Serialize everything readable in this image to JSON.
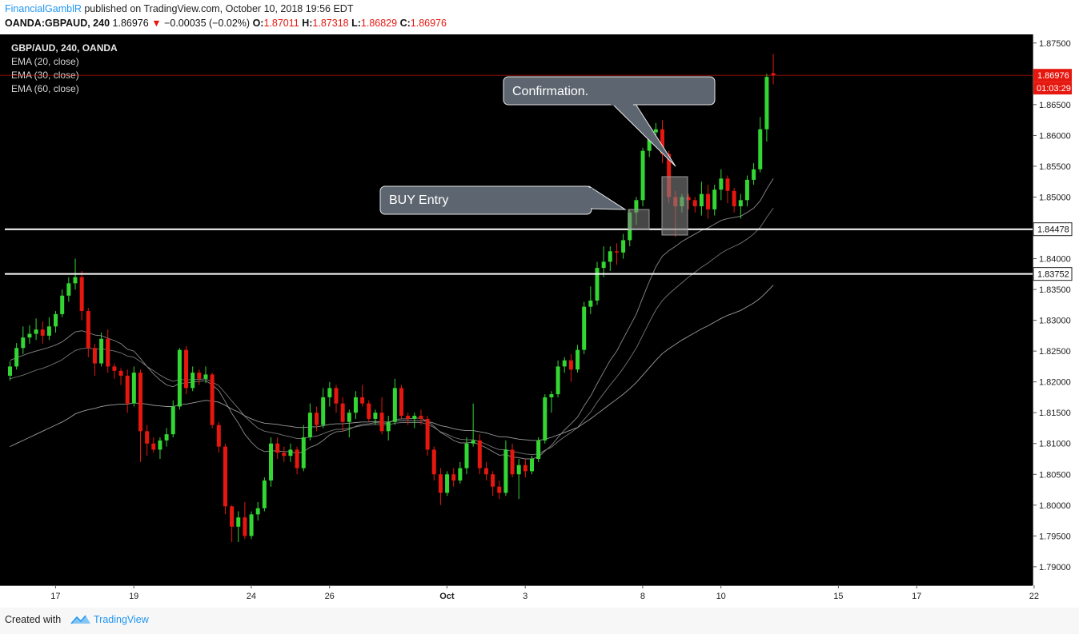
{
  "header": {
    "author": "FinancialGamblR",
    "published": "published on TradingView.com, October 10, 2018 19:56 EDT",
    "symbol_line": "OANDA:GBPAUD, 240",
    "last": "1.86976",
    "change": "−0.00035 (−0.02%)",
    "ohlc": {
      "o": "1.87011",
      "h": "1.87318",
      "l": "1.86829",
      "c": "1.86976"
    }
  },
  "legend": {
    "title": "GBP/AUD, 240, OANDA",
    "ema20": "EMA (20, close)",
    "ema30": "EMA (30, close)",
    "ema60": "EMA (60, close)"
  },
  "annotations": {
    "confirmation": "Confirmation.",
    "buy_entry": "BUY Entry"
  },
  "footer": {
    "created_with": "Created with",
    "brand": "TradingView"
  },
  "colors": {
    "up": "#33d633",
    "down": "#e5170f",
    "background": "#000000",
    "axis_text": "#222222",
    "price_badge": "#e5170f"
  },
  "chart_data": {
    "type": "candlestick",
    "title": "GBP/AUD, 240, OANDA",
    "ylim": [
      1.787,
      1.8764
    ],
    "y_ticks": [
      "1.87500",
      "1.86500",
      "1.86000",
      "1.85500",
      "1.85000",
      "1.84000",
      "1.83500",
      "1.83000",
      "1.82500",
      "1.82000",
      "1.81500",
      "1.81000",
      "1.80500",
      "1.80000",
      "1.79500",
      "1.79000"
    ],
    "x_ticks": [
      {
        "label": "17",
        "bar": 6
      },
      {
        "label": "19",
        "bar": 18
      },
      {
        "label": "24",
        "bar": 36
      },
      {
        "label": "26",
        "bar": 48
      },
      {
        "label": "Oct",
        "bar": 66
      },
      {
        "label": "3",
        "bar": 78
      },
      {
        "label": "8",
        "bar": 96
      },
      {
        "label": "10",
        "bar": 108
      },
      {
        "label": "15",
        "bar": 126
      },
      {
        "label": "17",
        "bar": 138
      },
      {
        "label": "22",
        "bar": 156
      }
    ],
    "horizontal_levels": [
      {
        "price": 1.84478,
        "label": "1.84478"
      },
      {
        "price": 1.83752,
        "label": "1.83752"
      }
    ],
    "last_price": {
      "price": 1.86976,
      "label": "1.86976",
      "timer": "01:03:29"
    },
    "ohlc": [
      [
        1.821,
        1.8233,
        1.8202,
        1.8225
      ],
      [
        1.8225,
        1.8263,
        1.822,
        1.8255
      ],
      [
        1.8255,
        1.829,
        1.8245,
        1.8272
      ],
      [
        1.8272,
        1.8292,
        1.8262,
        1.8278
      ],
      [
        1.8278,
        1.8303,
        1.8268,
        1.8285
      ],
      [
        1.8285,
        1.8298,
        1.8262,
        1.8275
      ],
      [
        1.8275,
        1.8305,
        1.8268,
        1.829
      ],
      [
        1.829,
        1.8315,
        1.828,
        1.831
      ],
      [
        1.831,
        1.835,
        1.8305,
        1.834
      ],
      [
        1.834,
        1.837,
        1.833,
        1.836
      ],
      [
        1.836,
        1.84,
        1.835,
        1.837
      ],
      [
        1.837,
        1.838,
        1.83,
        1.8315
      ],
      [
        1.8315,
        1.832,
        1.824,
        1.8255
      ],
      [
        1.8255,
        1.8262,
        1.821,
        1.823
      ],
      [
        1.823,
        1.828,
        1.8225,
        1.827
      ],
      [
        1.827,
        1.8285,
        1.8215,
        1.8225
      ],
      [
        1.8225,
        1.823,
        1.8205,
        1.8218
      ],
      [
        1.8218,
        1.8222,
        1.8195,
        1.821
      ],
      [
        1.821,
        1.822,
        1.815,
        1.8165
      ],
      [
        1.8165,
        1.8225,
        1.816,
        1.8215
      ],
      [
        1.8215,
        1.822,
        1.807,
        1.812
      ],
      [
        1.812,
        1.813,
        1.808,
        1.81
      ],
      [
        1.81,
        1.811,
        1.8085,
        1.809
      ],
      [
        1.809,
        1.811,
        1.8075,
        1.8105
      ],
      [
        1.8105,
        1.8125,
        1.8095,
        1.8115
      ],
      [
        1.8115,
        1.817,
        1.811,
        1.816
      ],
      [
        1.816,
        1.8255,
        1.8155,
        1.8252
      ],
      [
        1.8252,
        1.8258,
        1.818,
        1.819
      ],
      [
        1.819,
        1.8225,
        1.8185,
        1.8215
      ],
      [
        1.8215,
        1.822,
        1.8195,
        1.8205
      ],
      [
        1.8205,
        1.8225,
        1.8198,
        1.8212
      ],
      [
        1.8212,
        1.8215,
        1.8125,
        1.813
      ],
      [
        1.813,
        1.8135,
        1.8085,
        1.8095
      ],
      [
        1.8095,
        1.81,
        1.7985,
        1.7998
      ],
      [
        1.7998,
        1.8,
        1.794,
        1.7965
      ],
      [
        1.7965,
        1.799,
        1.794,
        1.798
      ],
      [
        1.798,
        1.8005,
        1.7945,
        1.795
      ],
      [
        1.795,
        1.799,
        1.7945,
        1.7985
      ],
      [
        1.7985,
        1.8005,
        1.7975,
        1.7995
      ],
      [
        1.7995,
        1.8045,
        1.799,
        1.804
      ],
      [
        1.804,
        1.811,
        1.803,
        1.81
      ],
      [
        1.81,
        1.811,
        1.8075,
        1.8085
      ],
      [
        1.8085,
        1.8095,
        1.807,
        1.808
      ],
      [
        1.808,
        1.81,
        1.807,
        1.809
      ],
      [
        1.809,
        1.8095,
        1.805,
        1.806
      ],
      [
        1.806,
        1.813,
        1.8055,
        1.811
      ],
      [
        1.811,
        1.8165,
        1.8105,
        1.815
      ],
      [
        1.815,
        1.816,
        1.812,
        1.813
      ],
      [
        1.813,
        1.819,
        1.8125,
        1.8175
      ],
      [
        1.8175,
        1.82,
        1.816,
        1.819
      ],
      [
        1.819,
        1.8195,
        1.815,
        1.8165
      ],
      [
        1.8165,
        1.8175,
        1.812,
        1.8135
      ],
      [
        1.8135,
        1.8155,
        1.811,
        1.815
      ],
      [
        1.815,
        1.8185,
        1.814,
        1.8175
      ],
      [
        1.8175,
        1.8195,
        1.816,
        1.8165
      ],
      [
        1.8165,
        1.817,
        1.8135,
        1.814
      ],
      [
        1.814,
        1.8155,
        1.813,
        1.815
      ],
      [
        1.815,
        1.8175,
        1.8115,
        1.812
      ],
      [
        1.812,
        1.8145,
        1.8105,
        1.8135
      ],
      [
        1.8135,
        1.8205,
        1.813,
        1.819
      ],
      [
        1.819,
        1.8195,
        1.814,
        1.8145
      ],
      [
        1.8145,
        1.815,
        1.813,
        1.814
      ],
      [
        1.814,
        1.815,
        1.8125,
        1.8145
      ],
      [
        1.8145,
        1.8155,
        1.813,
        1.814
      ],
      [
        1.814,
        1.8145,
        1.808,
        1.809
      ],
      [
        1.809,
        1.8095,
        1.804,
        1.805
      ],
      [
        1.805,
        1.806,
        1.8,
        1.802
      ],
      [
        1.802,
        1.8055,
        1.8015,
        1.805
      ],
      [
        1.805,
        1.806,
        1.803,
        1.804
      ],
      [
        1.804,
        1.807,
        1.8035,
        1.806
      ],
      [
        1.806,
        1.811,
        1.805,
        1.81
      ],
      [
        1.81,
        1.8165,
        1.8095,
        1.8105
      ],
      [
        1.8105,
        1.8115,
        1.805,
        1.806
      ],
      [
        1.806,
        1.807,
        1.804,
        1.805
      ],
      [
        1.805,
        1.8055,
        1.8015,
        1.803
      ],
      [
        1.803,
        1.804,
        1.801,
        1.802
      ],
      [
        1.802,
        1.8105,
        1.8015,
        1.809
      ],
      [
        1.809,
        1.81,
        1.8045,
        1.805
      ],
      [
        1.805,
        1.8075,
        1.801,
        1.8065
      ],
      [
        1.8065,
        1.8075,
        1.8045,
        1.8055
      ],
      [
        1.8055,
        1.808,
        1.805,
        1.8075
      ],
      [
        1.8075,
        1.811,
        1.807,
        1.8105
      ],
      [
        1.8105,
        1.818,
        1.81,
        1.8175
      ],
      [
        1.8175,
        1.8185,
        1.815,
        1.818
      ],
      [
        1.818,
        1.8235,
        1.8175,
        1.8225
      ],
      [
        1.8225,
        1.824,
        1.8215,
        1.8235
      ],
      [
        1.8235,
        1.8245,
        1.82,
        1.822
      ],
      [
        1.822,
        1.826,
        1.8215,
        1.8252
      ],
      [
        1.8252,
        1.833,
        1.8245,
        1.8322
      ],
      [
        1.8322,
        1.8355,
        1.831,
        1.8332
      ],
      [
        1.8332,
        1.8395,
        1.8325,
        1.8385
      ],
      [
        1.8385,
        1.842,
        1.837,
        1.8395
      ],
      [
        1.8395,
        1.842,
        1.838,
        1.8412
      ],
      [
        1.8412,
        1.8425,
        1.839,
        1.841
      ],
      [
        1.841,
        1.844,
        1.84,
        1.843
      ],
      [
        1.843,
        1.848,
        1.842,
        1.8475
      ],
      [
        1.8475,
        1.85,
        1.8455,
        1.8495
      ],
      [
        1.8495,
        1.858,
        1.8485,
        1.8575
      ],
      [
        1.8575,
        1.861,
        1.8565,
        1.8605
      ],
      [
        1.8605,
        1.862,
        1.859,
        1.861
      ],
      [
        1.861,
        1.8625,
        1.8555,
        1.857
      ],
      [
        1.857,
        1.8575,
        1.849,
        1.85
      ],
      [
        1.85,
        1.851,
        1.8435,
        1.8485
      ],
      [
        1.8485,
        1.8505,
        1.8475,
        1.85
      ],
      [
        1.85,
        1.8505,
        1.848,
        1.8495
      ],
      [
        1.8495,
        1.85,
        1.8475,
        1.8485
      ],
      [
        1.8485,
        1.8525,
        1.847,
        1.8505
      ],
      [
        1.8505,
        1.852,
        1.8465,
        1.848
      ],
      [
        1.848,
        1.852,
        1.847,
        1.8512
      ],
      [
        1.8512,
        1.8545,
        1.8495,
        1.853
      ],
      [
        1.853,
        1.8535,
        1.849,
        1.851
      ],
      [
        1.851,
        1.8515,
        1.8475,
        1.8485
      ],
      [
        1.8485,
        1.8505,
        1.8465,
        1.8495
      ],
      [
        1.8495,
        1.8535,
        1.8485,
        1.8528
      ],
      [
        1.8528,
        1.8555,
        1.852,
        1.8545
      ],
      [
        1.8545,
        1.863,
        1.854,
        1.861
      ],
      [
        1.861,
        1.87,
        1.859,
        1.8695
      ],
      [
        1.87011,
        1.87318,
        1.86829,
        1.86976
      ]
    ],
    "ema20": [
      1.8235,
      1.8239,
      1.8243,
      1.8247,
      1.825,
      1.8253,
      1.8256,
      1.826,
      1.8265,
      1.8273,
      1.8281,
      1.8283,
      1.828,
      1.8276,
      1.8275,
      1.8271,
      1.8267,
      1.8262,
      1.8253,
      1.825,
      1.8238,
      1.8225,
      1.8213,
      1.8203,
      1.8195,
      1.8192,
      1.8198,
      1.8198,
      1.82,
      1.8201,
      1.8202,
      1.8195,
      1.8186,
      1.8168,
      1.8149,
      1.8133,
      1.8115,
      1.8102,
      1.8092,
      1.8087,
      1.8088,
      1.8088,
      1.8087,
      1.8087,
      1.8084,
      1.8087,
      1.8094,
      1.8098,
      1.8105,
      1.8114,
      1.8119,
      1.812,
      1.8123,
      1.8128,
      1.8131,
      1.8132,
      1.8134,
      1.8133,
      1.8133,
      1.8139,
      1.814,
      1.814,
      1.8141,
      1.8141,
      1.8136,
      1.8128,
      1.8118,
      1.8112,
      1.8105,
      1.8101,
      1.8101,
      1.8102,
      1.8098,
      1.8093,
      1.8087,
      1.8081,
      1.8082,
      1.8078,
      1.8077,
      1.8075,
      1.8075,
      1.8078,
      1.8088,
      1.8097,
      1.811,
      1.8122,
      1.8132,
      1.8143,
      1.8161,
      1.8177,
      1.8197,
      1.8216,
      1.8235,
      1.825,
      1.827,
      1.829,
      1.831,
      1.8337,
      1.8363,
      1.8387,
      1.8404,
      1.8413,
      1.842,
      1.8428,
      1.8434,
      1.844,
      1.8446,
      1.845,
      1.8456,
      1.8462,
      1.8465,
      1.8467,
      1.8469,
      1.8475,
      1.8482,
      1.8494,
      1.8513,
      1.853
    ],
    "ema30": [
      1.8205,
      1.8208,
      1.8211,
      1.8215,
      1.8219,
      1.8222,
      1.8226,
      1.8231,
      1.8236,
      1.8244,
      1.8251,
      1.8254,
      1.8255,
      1.8253,
      1.8254,
      1.8252,
      1.825,
      1.8247,
      1.8242,
      1.824,
      1.8233,
      1.8225,
      1.8218,
      1.8211,
      1.8205,
      1.8201,
      1.8204,
      1.8203,
      1.8204,
      1.8204,
      1.8205,
      1.82,
      1.8194,
      1.8182,
      1.8169,
      1.8157,
      1.8144,
      1.8134,
      1.8125,
      1.812,
      1.8118,
      1.8116,
      1.8113,
      1.8111,
      1.8108,
      1.8108,
      1.8111,
      1.8112,
      1.8116,
      1.812,
      1.8123,
      1.8123,
      1.8125,
      1.8127,
      1.8129,
      1.813,
      1.8131,
      1.813,
      1.813,
      1.8133,
      1.8134,
      1.8134,
      1.8134,
      1.8134,
      1.8131,
      1.8126,
      1.8119,
      1.8115,
      1.811,
      1.8107,
      1.8106,
      1.8106,
      1.8103,
      1.8099,
      1.8094,
      1.809,
      1.809,
      1.8087,
      1.8085,
      1.8083,
      1.8082,
      1.8083,
      1.8089,
      1.8094,
      1.8103,
      1.8111,
      1.8118,
      1.8126,
      1.8139,
      1.8151,
      1.8167,
      1.8181,
      1.8195,
      1.8208,
      1.8222,
      1.8238,
      1.8255,
      1.8276,
      1.8297,
      1.8317,
      1.8332,
      1.8343,
      1.8352,
      1.8361,
      1.837,
      1.8378,
      1.8386,
      1.8393,
      1.8401,
      1.8409,
      1.8415,
      1.842,
      1.8425,
      1.8432,
      1.844,
      1.8451,
      1.8467,
      1.8482
    ],
    "ema60": [
      1.8095,
      1.81,
      1.8105,
      1.811,
      1.8115,
      1.812,
      1.8125,
      1.813,
      1.8135,
      1.8141,
      1.8148,
      1.8152,
      1.8155,
      1.8157,
      1.816,
      1.8162,
      1.8163,
      1.8164,
      1.8164,
      1.8166,
      1.8165,
      1.8164,
      1.8162,
      1.8161,
      1.816,
      1.816,
      1.8163,
      1.8164,
      1.8166,
      1.8168,
      1.817,
      1.8169,
      1.8167,
      1.8162,
      1.8156,
      1.8151,
      1.8145,
      1.814,
      1.8136,
      1.8133,
      1.8132,
      1.8131,
      1.8129,
      1.8128,
      1.8126,
      1.8126,
      1.8127,
      1.8127,
      1.8129,
      1.8131,
      1.8132,
      1.8132,
      1.8133,
      1.8134,
      1.8135,
      1.8135,
      1.8136,
      1.8135,
      1.8135,
      1.8137,
      1.8137,
      1.8137,
      1.8137,
      1.8137,
      1.8136,
      1.8133,
      1.8129,
      1.8127,
      1.8124,
      1.8122,
      1.8121,
      1.8121,
      1.8119,
      1.8117,
      1.8114,
      1.8111,
      1.8111,
      1.8109,
      1.8107,
      1.8106,
      1.8105,
      1.8105,
      1.8107,
      1.811,
      1.8114,
      1.8118,
      1.8122,
      1.8126,
      1.8133,
      1.814,
      1.8148,
      1.8156,
      1.8164,
      1.8172,
      1.818,
      1.8189,
      1.8199,
      1.8211,
      1.8223,
      1.8235,
      1.8246,
      1.8254,
      1.8261,
      1.8268,
      1.8274,
      1.828,
      1.8286,
      1.8291,
      1.8297,
      1.8303,
      1.8308,
      1.8312,
      1.8316,
      1.8322,
      1.8328,
      1.8336,
      1.8346,
      1.8357
    ]
  }
}
